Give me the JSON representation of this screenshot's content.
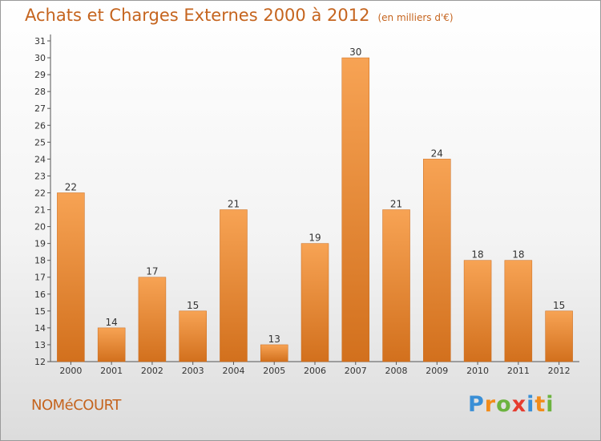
{
  "title": "Achats et Charges Externes 2000 à 2012",
  "unit": "(en milliers d'€)",
  "commune": "NOMéCOURT",
  "logo": {
    "letters": [
      "P",
      "r",
      "o",
      "x",
      "i",
      "t",
      "i"
    ],
    "colors": [
      "#3a8fd6",
      "#f28c1a",
      "#6cb33f",
      "#e63c2f",
      "#3a8fd6",
      "#f28c1a",
      "#6cb33f"
    ]
  },
  "chart_data": {
    "type": "bar",
    "title": "Achats et Charges Externes 2000 à 2012",
    "subtitle": "(en milliers d'€)",
    "categories": [
      "2000",
      "2001",
      "2002",
      "2003",
      "2004",
      "2005",
      "2006",
      "2007",
      "2008",
      "2009",
      "2010",
      "2011",
      "2012"
    ],
    "values": [
      22,
      14,
      17,
      15,
      21,
      13,
      19,
      30,
      21,
      24,
      18,
      18,
      15
    ],
    "ylim": [
      12,
      31
    ],
    "yticks": [
      12,
      13,
      14,
      15,
      16,
      17,
      18,
      19,
      20,
      21,
      22,
      23,
      24,
      25,
      26,
      27,
      28,
      29,
      30,
      31
    ],
    "grid": false,
    "bar_color_top": "#f7a354",
    "bar_color_bottom": "#d2701d"
  }
}
